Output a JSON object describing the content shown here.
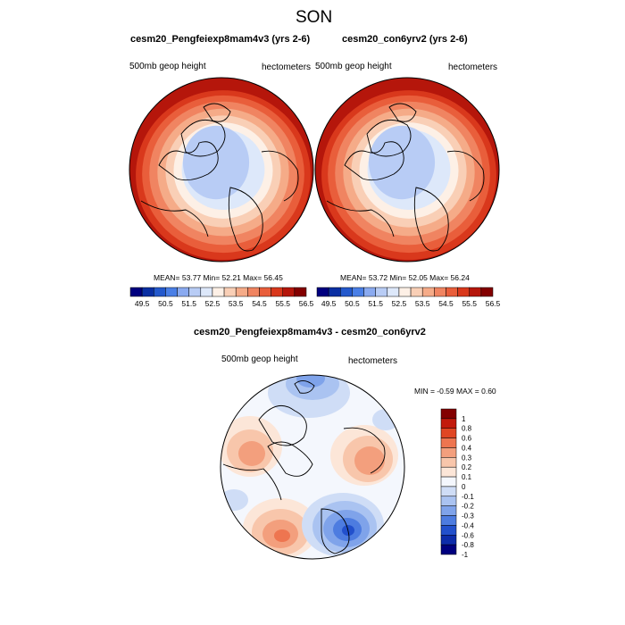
{
  "figure": {
    "title": "SON"
  },
  "panels": [
    {
      "name": "cesm20_Pengfeiexp8mam4v3 (yrs 2-6)",
      "variable": "500mb geop height",
      "units": "hectometers",
      "stats": "MEAN=  53.77  Min=  52.21  Max=  56.45"
    },
    {
      "name": "cesm20_con6yrv2 (yrs 2-6)",
      "variable": "500mb geop height",
      "units": "hectometers",
      "stats": "MEAN=  53.72  Min=  52.05  Max=  56.24"
    }
  ],
  "diff_panel": {
    "name": "cesm20_Pengfeiexp8mam4v3 - cesm20_con6yrv2",
    "variable": "500mb geop height",
    "units": "hectometers",
    "stats": "MIN =  -0.59 MAX =   0.60"
  },
  "colors": {
    "abs_scale": [
      "#00007f",
      "#0a2fa3",
      "#2459cc",
      "#4a7fe6",
      "#8aaaf0",
      "#b8ccf5",
      "#dde8fa",
      "#fdf0e6",
      "#f9cfb6",
      "#f5ab88",
      "#f08461",
      "#e95e3b",
      "#d9381c",
      "#b5160b",
      "#830000"
    ],
    "diff_scale": [
      "#830000",
      "#c21a0c",
      "#e04623",
      "#ee7550",
      "#f39f7d",
      "#f8c6ab",
      "#fce6d8",
      "#f4f7fd",
      "#cfddf6",
      "#aac3f1",
      "#7fa3ea",
      "#4d7ce0",
      "#2250cc",
      "#0d2caa",
      "#00007f"
    ]
  },
  "chart_data": [
    {
      "type": "heatmap",
      "projection": "north-polar-stereographic",
      "title": "cesm20_Pengfeiexp8mam4v3 (yrs 2-6)",
      "variable": "500mb geop height",
      "units": "hectometers",
      "mean": 53.77,
      "min": 52.21,
      "max": 56.45,
      "colorbar": {
        "levels": [
          49.5,
          50,
          50.5,
          51,
          51.5,
          52,
          52.5,
          53,
          53.5,
          54,
          54.5,
          55,
          55.5,
          56,
          56.5
        ],
        "labels": [
          "49.5",
          "50.5",
          "51.5",
          "52.5",
          "53.5",
          "54.5",
          "55.5",
          "56.5"
        ],
        "orientation": "horizontal"
      }
    },
    {
      "type": "heatmap",
      "projection": "north-polar-stereographic",
      "title": "cesm20_con6yrv2 (yrs 2-6)",
      "variable": "500mb geop height",
      "units": "hectometers",
      "mean": 53.72,
      "min": 52.05,
      "max": 56.24,
      "colorbar": {
        "levels": [
          49.5,
          50,
          50.5,
          51,
          51.5,
          52,
          52.5,
          53,
          53.5,
          54,
          54.5,
          55,
          55.5,
          56,
          56.5
        ],
        "labels": [
          "49.5",
          "50.5",
          "51.5",
          "52.5",
          "53.5",
          "54.5",
          "55.5",
          "56.5"
        ],
        "orientation": "horizontal"
      }
    },
    {
      "type": "heatmap",
      "projection": "north-polar-stereographic",
      "title": "cesm20_Pengfeiexp8mam4v3 - cesm20_con6yrv2",
      "variable": "500mb geop height",
      "units": "hectometers",
      "min": -0.59,
      "max": 0.6,
      "colorbar": {
        "labels": [
          "1",
          "0.8",
          "0.6",
          "0.4",
          "0.3",
          "0.2",
          "0.1",
          "0",
          "-0.1",
          "-0.2",
          "-0.3",
          "-0.4",
          "-0.6",
          "-0.8",
          "-1"
        ],
        "orientation": "vertical"
      }
    }
  ]
}
